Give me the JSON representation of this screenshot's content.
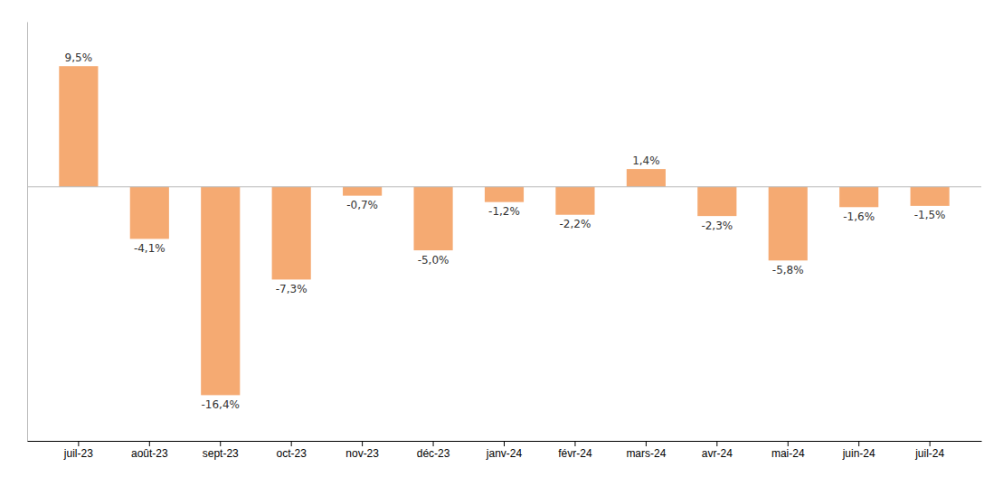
{
  "chart_data": {
    "type": "bar",
    "categories": [
      "juil-23",
      "août-23",
      "sept-23",
      "oct-23",
      "nov-23",
      "déc-23",
      "janv-24",
      "févr-24",
      "mars-24",
      "avr-24",
      "mai-24",
      "juin-24",
      "juil-24"
    ],
    "values": [
      9.5,
      -4.1,
      -16.4,
      -7.3,
      -0.7,
      -5.0,
      -1.2,
      -2.2,
      1.4,
      -2.3,
      -5.8,
      -1.6,
      -1.5
    ],
    "value_labels": [
      "9,5%",
      "-4,1%",
      "-16,4%",
      "-7,3%",
      "-0,7%",
      "-5,0%",
      "-1,2%",
      "-2,2%",
      "1,4%",
      "-2,3%",
      "-5,8%",
      "-1,6%",
      "-1,5%"
    ],
    "color": "#F5AA72",
    "ylim": [
      -20,
      13
    ],
    "grid": false,
    "data_labels": true,
    "tick_labels": "x"
  }
}
